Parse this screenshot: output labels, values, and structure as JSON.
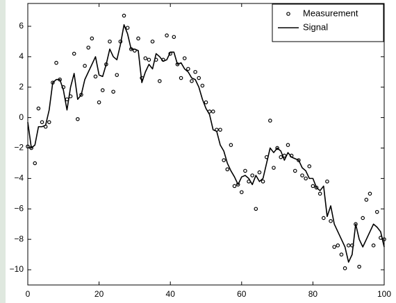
{
  "chart_data": {
    "type": "scatter",
    "x": [
      0,
      1,
      2,
      3,
      4,
      5,
      6,
      7,
      8,
      9,
      10,
      11,
      12,
      13,
      14,
      15,
      16,
      17,
      18,
      19,
      20,
      21,
      22,
      23,
      24,
      25,
      26,
      27,
      28,
      29,
      30,
      31,
      32,
      33,
      34,
      35,
      36,
      37,
      38,
      39,
      40,
      41,
      42,
      43,
      44,
      45,
      46,
      47,
      48,
      49,
      50,
      51,
      52,
      53,
      54,
      55,
      56,
      57,
      58,
      59,
      60,
      61,
      62,
      63,
      64,
      65,
      66,
      67,
      68,
      69,
      70,
      71,
      72,
      73,
      74,
      75,
      76,
      77,
      78,
      79,
      80,
      81,
      82,
      83,
      84,
      85,
      86,
      87,
      88,
      89,
      90,
      91,
      92,
      93,
      94,
      95,
      96,
      97,
      98,
      99,
      100
    ],
    "series": [
      {
        "name": "Measurement",
        "type": "scatter",
        "color": "#000000",
        "values": [
          -1.9,
          -2,
          -3,
          0.6,
          -0.3,
          -0.6,
          -0.3,
          2.3,
          3.6,
          2.5,
          2.0,
          1.2,
          1.4,
          4.2,
          -0.1,
          1.5,
          3.4,
          4.6,
          5.2,
          2.7,
          1.0,
          1.8,
          3.5,
          5.0,
          1.7,
          2.8,
          5.0,
          6.7,
          5.9,
          4.5,
          4.4,
          5.2,
          2.6,
          3.9,
          3.8,
          5.0,
          3.8,
          2.4,
          3.8,
          5.4,
          4.2,
          5.3,
          3.5,
          2.6,
          3.9,
          3.2,
          2.4,
          3.0,
          2.6,
          2.1,
          1.0,
          0.4,
          0.4,
          -0.8,
          -0.8,
          -2.8,
          -3.4,
          -1.8,
          -4.5,
          -4.4,
          -4.9,
          -3.5,
          -4.2,
          -3.8,
          -6.0,
          -3.6,
          -4.2,
          -2.6,
          -0.2,
          -3.3,
          -2.0,
          -2.6,
          -2.5,
          -1.8,
          -2.5,
          -3.5,
          -2.8,
          -3.8,
          -4.0,
          -3.2,
          -4.5,
          -4.6,
          -5.0,
          -6.6,
          -4.2,
          -6.8,
          -8.5,
          -8.4,
          -9.0,
          -9.9,
          -8.4,
          -8.4,
          -7.0,
          -9.8,
          -6.6,
          -5.4,
          -5.0,
          -8.4,
          -6.2,
          -7.9,
          -8.0
        ]
      },
      {
        "name": "Signal",
        "type": "line",
        "color": "#000000",
        "values": [
          -0.3,
          -2,
          -1.8,
          -0.6,
          -0.6,
          -0.5,
          0.5,
          2.3,
          2.5,
          2.5,
          1.8,
          0.5,
          2.0,
          2.9,
          1.2,
          1.5,
          2.5,
          3.0,
          3.5,
          4.0,
          2.8,
          2.7,
          3.5,
          4.5,
          4.0,
          3.8,
          4.8,
          6.1,
          5.5,
          4.5,
          4.5,
          4.4,
          2.3,
          3.0,
          3.5,
          3.2,
          4.2,
          4.0,
          3.7,
          3.8,
          4.3,
          4.3,
          3.5,
          3.6,
          3.2,
          3.0,
          2.6,
          2.5,
          2.0,
          1.2,
          0.6,
          0.2,
          -0.8,
          -0.9,
          -1.8,
          -2.2,
          -3.0,
          -3.5,
          -3.9,
          -4.4,
          -3.9,
          -3.8,
          -4.0,
          -4.4,
          -3.8,
          -4.2,
          -4.0,
          -3.0,
          -2.0,
          -2.3,
          -2.0,
          -2.2,
          -2.8,
          -2.3,
          -2.6,
          -2.7,
          -2.8,
          -3.3,
          -3.5,
          -4.0,
          -4.0,
          -4.6,
          -4.8,
          -4.5,
          -6.5,
          -5.8,
          -7.0,
          -7.5,
          -8.0,
          -8.5,
          -9.5,
          -9.0,
          -7.0,
          -8.0,
          -8.5,
          -8.0,
          -7.5,
          -7.0,
          -7.2,
          -7.5,
          -8.5
        ]
      }
    ],
    "xlim": [
      0,
      100
    ],
    "xticks": [
      0,
      20,
      40,
      60,
      80,
      100
    ],
    "ylim": [
      -11,
      7.5
    ],
    "yticks": [
      {
        "value": -10,
        "label": "−10"
      },
      {
        "value": -8,
        "label": "−8"
      },
      {
        "value": -6,
        "label": "−6"
      },
      {
        "value": -4,
        "label": "−4"
      },
      {
        "value": -2,
        "label": "−2"
      },
      0,
      2,
      4,
      6
    ],
    "legend": "upper right",
    "grid": false
  }
}
